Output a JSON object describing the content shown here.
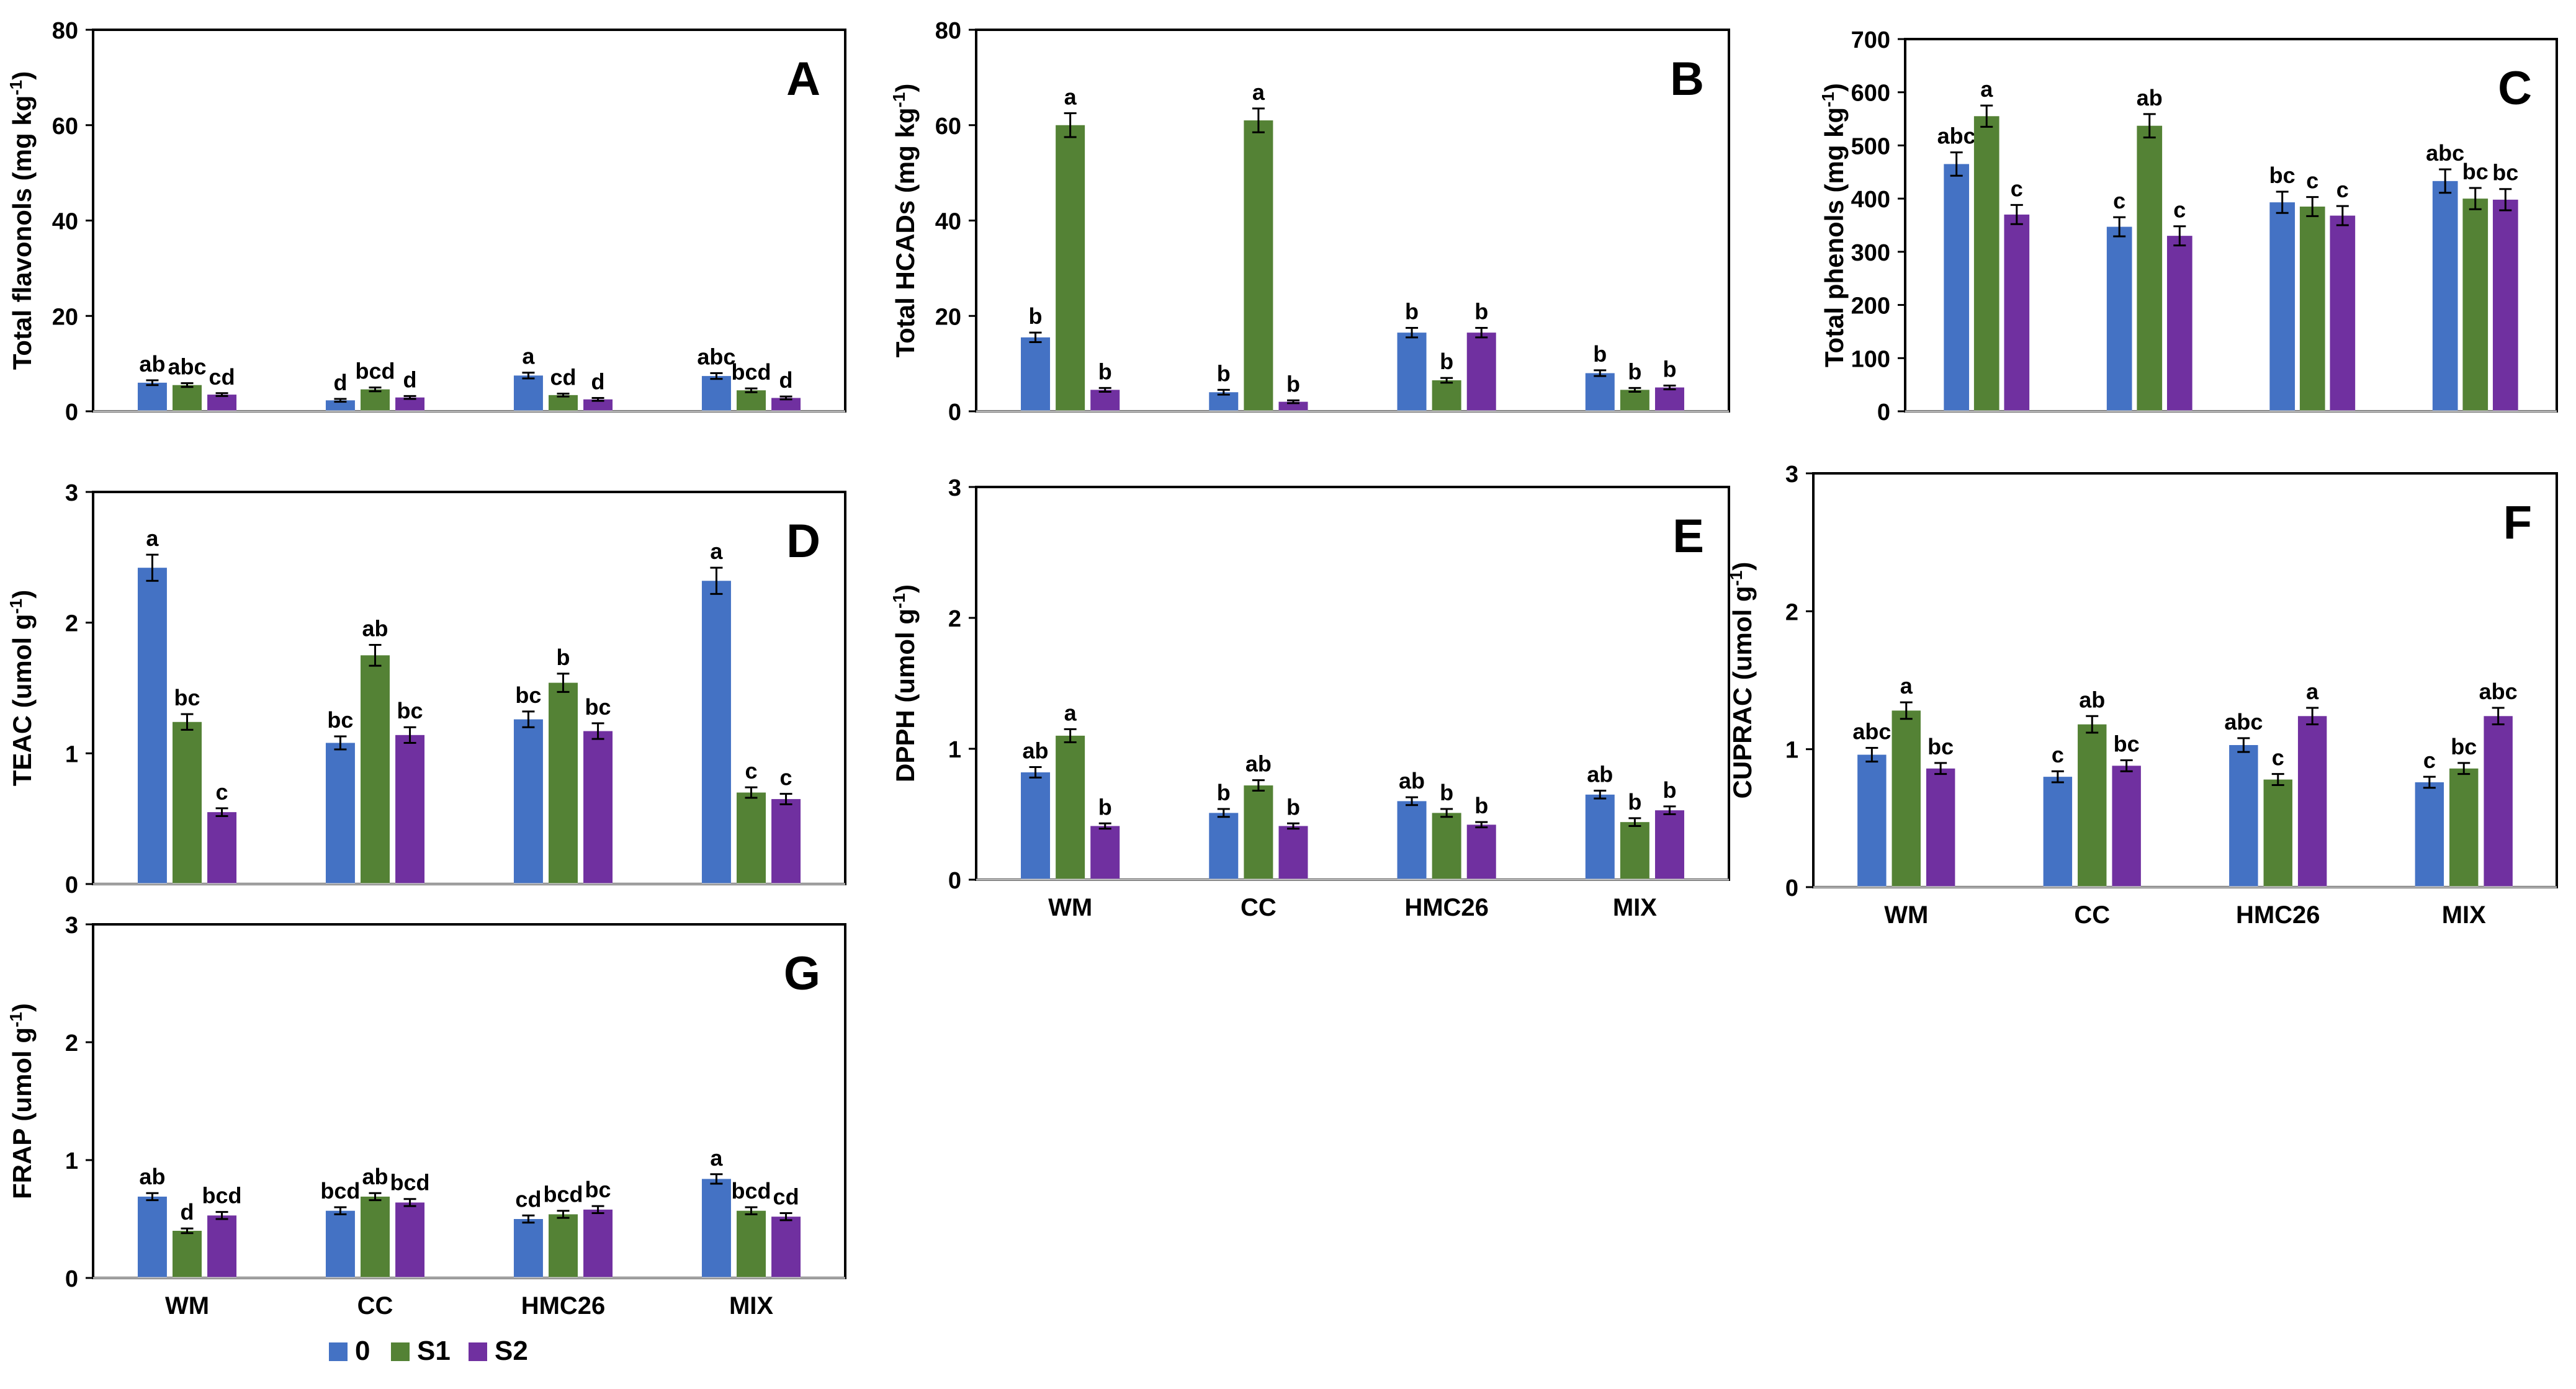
{
  "colors": {
    "s0": "#4472C4",
    "s1": "#548235",
    "s2": "#7030A0",
    "frame": "#000000",
    "axis": "#bfbfbf"
  },
  "legend": {
    "items": [
      "0",
      "S1",
      "S2"
    ]
  },
  "chart_data": [
    {
      "type": "bar",
      "panel_label": "A",
      "title": "",
      "ylabel": "Total flavonols (mg kg-1)",
      "ylabel_text": "Total flavonols  (mg kg",
      "ylabel_sup": "-1",
      "ylabel_close": ")",
      "xlabel": "",
      "ylim": [
        0,
        80
      ],
      "yticks": [
        0,
        20,
        40,
        60,
        80
      ],
      "categories": [
        "",
        "",
        "",
        ""
      ],
      "series": [
        {
          "name": "0",
          "values": [
            6.0,
            2.3,
            7.5,
            7.4
          ],
          "errors": [
            0.5,
            0.3,
            0.6,
            0.6
          ],
          "letters": [
            "ab",
            "d",
            "a",
            "abc"
          ]
        },
        {
          "name": "S1",
          "values": [
            5.5,
            4.6,
            3.4,
            4.4
          ],
          "errors": [
            0.4,
            0.4,
            0.3,
            0.4
          ],
          "letters": [
            "abc",
            "bcd",
            "cd",
            "bcd"
          ]
        },
        {
          "name": "S2",
          "values": [
            3.5,
            2.9,
            2.5,
            2.8
          ],
          "errors": [
            0.3,
            0.3,
            0.3,
            0.3
          ],
          "letters": [
            "cd",
            "d",
            "d",
            "d"
          ]
        }
      ]
    },
    {
      "type": "bar",
      "panel_label": "B",
      "title": "",
      "ylabel": "Total HCADs (mg kg-1)",
      "ylabel_text": "Total HCADs (mg kg",
      "ylabel_sup": "-1",
      "ylabel_close": ")",
      "xlabel": "",
      "ylim": [
        0,
        80
      ],
      "yticks": [
        0,
        20,
        40,
        60,
        80
      ],
      "categories": [
        "",
        "",
        "",
        ""
      ],
      "series": [
        {
          "name": "0",
          "values": [
            15.5,
            4.0,
            16.5,
            8.0
          ],
          "errors": [
            1.0,
            0.5,
            1.0,
            0.6
          ],
          "letters": [
            "b",
            "b",
            "b",
            "b"
          ]
        },
        {
          "name": "S1",
          "values": [
            60.0,
            61.0,
            6.5,
            4.5
          ],
          "errors": [
            2.5,
            2.5,
            0.5,
            0.4
          ],
          "letters": [
            "a",
            "a",
            "b",
            "b"
          ]
        },
        {
          "name": "S2",
          "values": [
            4.5,
            2.0,
            16.5,
            5.0
          ],
          "errors": [
            0.4,
            0.3,
            1.0,
            0.4
          ],
          "letters": [
            "b",
            "b",
            "b",
            "b"
          ]
        }
      ]
    },
    {
      "type": "bar",
      "panel_label": "C",
      "title": "",
      "ylabel": "Total phenols (mg kg-1)",
      "ylabel_text": "Total phenols (mg kg",
      "ylabel_sup": "-1",
      "ylabel_close": ")",
      "xlabel": "",
      "ylim": [
        0,
        700
      ],
      "yticks": [
        0,
        100,
        200,
        300,
        400,
        500,
        600,
        700
      ],
      "categories": [
        "",
        "",
        "",
        ""
      ],
      "series": [
        {
          "name": "0",
          "values": [
            465,
            347,
            393,
            433
          ],
          "errors": [
            22,
            18,
            20,
            22
          ],
          "letters": [
            "abc",
            "c",
            "bc",
            "abc"
          ]
        },
        {
          "name": "S1",
          "values": [
            555,
            537,
            385,
            400
          ],
          "errors": [
            20,
            22,
            18,
            20
          ],
          "letters": [
            "a",
            "ab",
            "c",
            "bc"
          ]
        },
        {
          "name": "S2",
          "values": [
            370,
            330,
            368,
            398
          ],
          "errors": [
            18,
            18,
            18,
            20
          ],
          "letters": [
            "c",
            "c",
            "c",
            "bc"
          ]
        }
      ]
    },
    {
      "type": "bar",
      "panel_label": "D",
      "title": "",
      "ylabel": "TEAC (umol g-1)",
      "ylabel_text": "TEAC (umol g",
      "ylabel_sup": "-1",
      "ylabel_close": ")",
      "xlabel": "",
      "ylim": [
        0,
        3
      ],
      "yticks": [
        0,
        1,
        2,
        3
      ],
      "categories": [
        "",
        "",
        "",
        ""
      ],
      "series": [
        {
          "name": "0",
          "values": [
            2.42,
            1.08,
            1.26,
            2.32
          ],
          "errors": [
            0.1,
            0.05,
            0.06,
            0.1
          ],
          "letters": [
            "a",
            "bc",
            "bc",
            "a"
          ]
        },
        {
          "name": "S1",
          "values": [
            1.24,
            1.75,
            1.54,
            0.7
          ],
          "errors": [
            0.06,
            0.08,
            0.07,
            0.04
          ],
          "letters": [
            "bc",
            "ab",
            "b",
            "c"
          ]
        },
        {
          "name": "S2",
          "values": [
            0.55,
            1.14,
            1.17,
            0.65
          ],
          "errors": [
            0.03,
            0.06,
            0.06,
            0.04
          ],
          "letters": [
            "c",
            "bc",
            "bc",
            "c"
          ]
        }
      ]
    },
    {
      "type": "bar",
      "panel_label": "E",
      "title": "",
      "ylabel": "DPPH (umol g-1)",
      "ylabel_text": "DPPH (umol g",
      "ylabel_sup": "-1",
      "ylabel_close": ")",
      "xlabel": "",
      "ylim": [
        0,
        3
      ],
      "yticks": [
        0,
        1,
        2,
        3
      ],
      "categories": [
        "WM",
        "CC",
        "HMC26",
        "MIX"
      ],
      "series": [
        {
          "name": "0",
          "values": [
            0.82,
            0.51,
            0.6,
            0.65
          ],
          "errors": [
            0.04,
            0.03,
            0.03,
            0.03
          ],
          "letters": [
            "ab",
            "b",
            "ab",
            "ab"
          ]
        },
        {
          "name": "S1",
          "values": [
            1.1,
            0.72,
            0.51,
            0.44
          ],
          "errors": [
            0.05,
            0.04,
            0.03,
            0.03
          ],
          "letters": [
            "a",
            "ab",
            "b",
            "b"
          ]
        },
        {
          "name": "S2",
          "values": [
            0.41,
            0.41,
            0.42,
            0.53
          ],
          "errors": [
            0.02,
            0.02,
            0.02,
            0.03
          ],
          "letters": [
            "b",
            "b",
            "b",
            "b"
          ]
        }
      ]
    },
    {
      "type": "bar",
      "panel_label": "F",
      "title": "",
      "ylabel": "CUPRAC (umol g-1)",
      "ylabel_text": "CUPRAC (umol g",
      "ylabel_sup": "-1",
      "ylabel_close": ")",
      "xlabel": "",
      "ylim": [
        0,
        3
      ],
      "yticks": [
        0,
        1,
        2,
        3
      ],
      "categories": [
        "WM",
        "CC",
        "HMC26",
        "MIX"
      ],
      "series": [
        {
          "name": "0",
          "values": [
            0.96,
            0.8,
            1.03,
            0.76
          ],
          "errors": [
            0.05,
            0.04,
            0.05,
            0.04
          ],
          "letters": [
            "abc",
            "c",
            "abc",
            "c"
          ]
        },
        {
          "name": "S1",
          "values": [
            1.28,
            1.18,
            0.78,
            0.86
          ],
          "errors": [
            0.06,
            0.06,
            0.04,
            0.04
          ],
          "letters": [
            "a",
            "ab",
            "c",
            "bc"
          ]
        },
        {
          "name": "S2",
          "values": [
            0.86,
            0.88,
            1.24,
            1.24
          ],
          "errors": [
            0.04,
            0.04,
            0.06,
            0.06
          ],
          "letters": [
            "bc",
            "bc",
            "a",
            "abc"
          ]
        }
      ]
    },
    {
      "type": "bar",
      "panel_label": "G",
      "title": "",
      "ylabel": "FRAP (umol g-1)",
      "ylabel_text": "FRAP (umol g",
      "ylabel_sup": "-1",
      "ylabel_close": ")",
      "xlabel": "",
      "ylim": [
        0,
        3
      ],
      "yticks": [
        0,
        1,
        2,
        3
      ],
      "categories": [
        "WM",
        "CC",
        "HMC26",
        "MIX"
      ],
      "series": [
        {
          "name": "0",
          "values": [
            0.69,
            0.57,
            0.5,
            0.84
          ],
          "errors": [
            0.03,
            0.03,
            0.03,
            0.04
          ],
          "letters": [
            "ab",
            "bcd",
            "cd",
            "a"
          ]
        },
        {
          "name": "S1",
          "values": [
            0.4,
            0.69,
            0.54,
            0.57
          ],
          "errors": [
            0.02,
            0.03,
            0.03,
            0.03
          ],
          "letters": [
            "d",
            "ab",
            "bcd",
            "bcd"
          ]
        },
        {
          "name": "S2",
          "values": [
            0.53,
            0.64,
            0.58,
            0.52
          ],
          "errors": [
            0.03,
            0.03,
            0.03,
            0.03
          ],
          "letters": [
            "bcd",
            "bcd",
            "bc",
            "cd"
          ]
        }
      ]
    }
  ]
}
